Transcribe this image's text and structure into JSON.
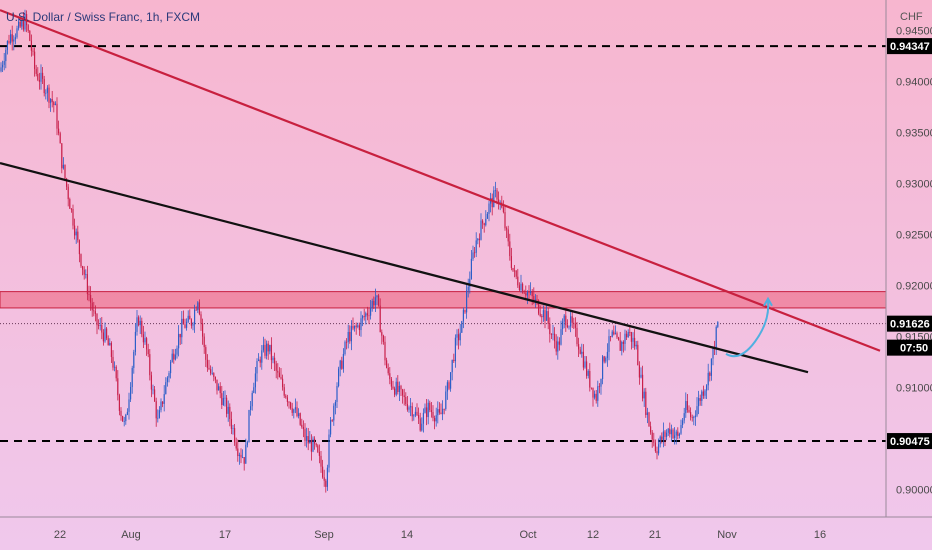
{
  "header": {
    "title": "U.S. Dollar / Swiss Franc, 1h, FXCM"
  },
  "currency_label": "CHF",
  "colors": {
    "bg_top": "#f7b6cf",
    "bg_bottom": "#f0c8ec",
    "candle_up": "#2c5ec8",
    "candle_down": "#c81f4a",
    "resistance_line": "#c8203f",
    "support_line": "#111111",
    "zone_fill": "#ec5f78",
    "zone_border": "#c8203f",
    "projection": "#4fb0e0",
    "price_tag": "#000000"
  },
  "price_tags": [
    {
      "price": 0.94347,
      "label": "0.94347"
    },
    {
      "price": 0.91626,
      "label": "0.91626"
    },
    {
      "price": 0.90475,
      "label": "0.90475"
    }
  ],
  "countdown_label": "07:50",
  "chart_data": {
    "type": "candlestick",
    "title": "U.S. Dollar / Swiss Franc, 1h, FXCM",
    "ylim": [
      0.8975,
      0.9475
    ],
    "y_ticks": [
      0.9,
      0.905,
      0.91,
      0.915,
      0.92,
      0.925,
      0.93,
      0.935,
      0.94,
      0.945
    ],
    "y_tick_labels": [
      "0.90000",
      "0.90500",
      "0.91000",
      "0.91500",
      "0.92000",
      "0.92500",
      "0.93000",
      "0.93500",
      "0.94000",
      "0.94500"
    ],
    "x_ticks": [
      "22",
      "Aug",
      "17",
      "Sep",
      "14",
      "Oct",
      "12",
      "21",
      "Nov",
      "16"
    ],
    "price_path": [
      [
        0,
        0.941
      ],
      [
        5,
        0.943
      ],
      [
        10,
        0.9445
      ],
      [
        18,
        0.945
      ],
      [
        25,
        0.946
      ],
      [
        30,
        0.944
      ],
      [
        35,
        0.941
      ],
      [
        45,
        0.9395
      ],
      [
        55,
        0.9375
      ],
      [
        62,
        0.932
      ],
      [
        70,
        0.928
      ],
      [
        80,
        0.923
      ],
      [
        88,
        0.9195
      ],
      [
        95,
        0.9165
      ],
      [
        105,
        0.915
      ],
      [
        112,
        0.913
      ],
      [
        120,
        0.908
      ],
      [
        125,
        0.906
      ],
      [
        132,
        0.912
      ],
      [
        138,
        0.917
      ],
      [
        146,
        0.914
      ],
      [
        152,
        0.91
      ],
      [
        158,
        0.9065
      ],
      [
        165,
        0.91
      ],
      [
        172,
        0.913
      ],
      [
        182,
        0.916
      ],
      [
        192,
        0.9165
      ],
      [
        198,
        0.919
      ],
      [
        205,
        0.913
      ],
      [
        212,
        0.911
      ],
      [
        220,
        0.9095
      ],
      [
        230,
        0.907
      ],
      [
        238,
        0.904
      ],
      [
        245,
        0.903
      ],
      [
        252,
        0.91
      ],
      [
        260,
        0.913
      ],
      [
        268,
        0.914
      ],
      [
        278,
        0.911
      ],
      [
        288,
        0.909
      ],
      [
        298,
        0.907
      ],
      [
        305,
        0.905
      ],
      [
        315,
        0.904
      ],
      [
        322,
        0.902
      ],
      [
        326,
        0.901
      ],
      [
        330,
        0.906
      ],
      [
        338,
        0.911
      ],
      [
        348,
        0.915
      ],
      [
        358,
        0.916
      ],
      [
        368,
        0.9175
      ],
      [
        376,
        0.919
      ],
      [
        382,
        0.915
      ],
      [
        388,
        0.911
      ],
      [
        395,
        0.91
      ],
      [
        402,
        0.909
      ],
      [
        412,
        0.908
      ],
      [
        420,
        0.9065
      ],
      [
        428,
        0.908
      ],
      [
        440,
        0.907
      ],
      [
        448,
        0.91
      ],
      [
        455,
        0.914
      ],
      [
        462,
        0.916
      ],
      [
        468,
        0.92
      ],
      [
        475,
        0.924
      ],
      [
        482,
        0.926
      ],
      [
        490,
        0.928
      ],
      [
        497,
        0.929
      ],
      [
        503,
        0.927
      ],
      [
        508,
        0.924
      ],
      [
        514,
        0.921
      ],
      [
        522,
        0.92
      ],
      [
        530,
        0.919
      ],
      [
        538,
        0.918
      ],
      [
        546,
        0.917
      ],
      [
        552,
        0.915
      ],
      [
        558,
        0.914
      ],
      [
        565,
        0.917
      ],
      [
        572,
        0.916
      ],
      [
        580,
        0.914
      ],
      [
        588,
        0.911
      ],
      [
        596,
        0.909
      ],
      [
        604,
        0.913
      ],
      [
        612,
        0.915
      ],
      [
        620,
        0.914
      ],
      [
        628,
        0.9155
      ],
      [
        636,
        0.914
      ],
      [
        642,
        0.91
      ],
      [
        650,
        0.906
      ],
      [
        656,
        0.904
      ],
      [
        662,
        0.905
      ],
      [
        670,
        0.906
      ],
      [
        678,
        0.905
      ],
      [
        685,
        0.908
      ],
      [
        692,
        0.907
      ],
      [
        700,
        0.909
      ],
      [
        708,
        0.911
      ],
      [
        714,
        0.914
      ],
      [
        718,
        0.9163
      ]
    ],
    "projection_path": [
      [
        726,
        0.9133
      ],
      [
        740,
        0.9125
      ],
      [
        755,
        0.9145
      ],
      [
        768,
        0.9185
      ]
    ],
    "resistance_trendline": [
      [
        0,
        0.947
      ],
      [
        880,
        0.9136
      ]
    ],
    "support_trendline": [
      [
        0,
        0.932
      ],
      [
        808,
        0.9115
      ]
    ],
    "supply_zone": [
      0.9178,
      0.9194
    ],
    "horizontal_levels": [
      0.94347,
      0.90475
    ],
    "current_price": 0.91626
  }
}
